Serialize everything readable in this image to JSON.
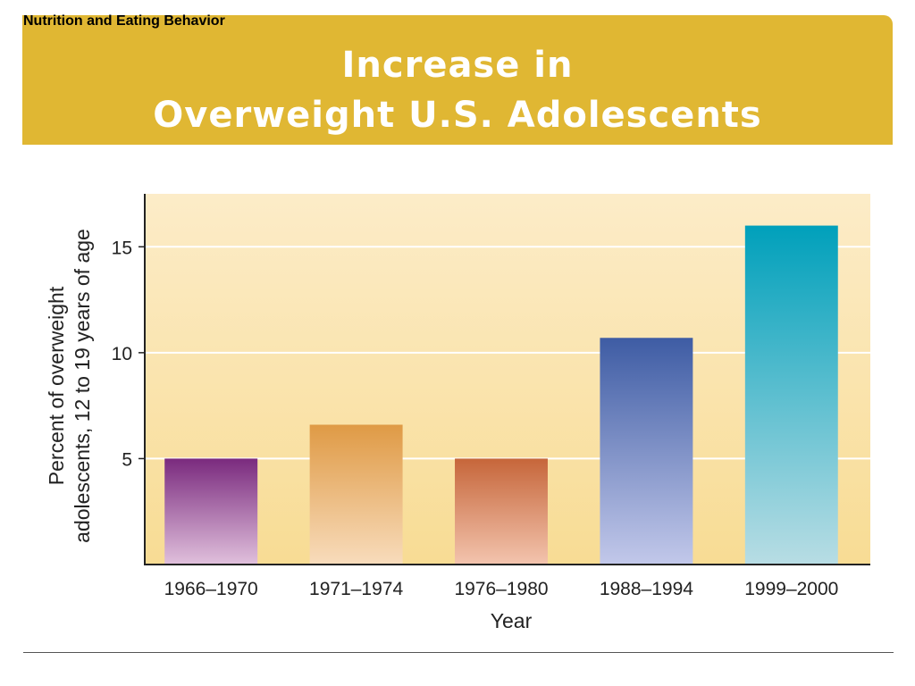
{
  "header": {
    "section": "Nutrition and Eating Behavior",
    "title_line1": "Increase in",
    "title_line2": "Overweight U.S. Adolescents"
  },
  "colors": {
    "header_bg": "#e0b733",
    "plot_bg_top": "#fcecc8",
    "plot_bg_bottom": "#f8dc94"
  },
  "chart_data": {
    "type": "bar",
    "categories": [
      "1966–1970",
      "1971–1974",
      "1976–1980",
      "1988–1994",
      "1999–2000"
    ],
    "values": [
      5,
      6.6,
      5,
      10.7,
      16
    ],
    "bar_colors": [
      [
        "#7a2a7e",
        "#e0c0dc"
      ],
      [
        "#df9a45",
        "#f8dcbc"
      ],
      [
        "#c6663a",
        "#f3c4ae"
      ],
      [
        "#3e5ca4",
        "#c2c8ea"
      ],
      [
        "#00a0bb",
        "#b8dde4"
      ]
    ],
    "title": "",
    "xlabel": "Year",
    "ylabel_line1": "Percent of overweight",
    "ylabel_line2": "adolescents, 12 to 19 years of age",
    "yticks": [
      5,
      10,
      15
    ],
    "ylim": [
      0,
      17.5
    ],
    "grid": true
  }
}
